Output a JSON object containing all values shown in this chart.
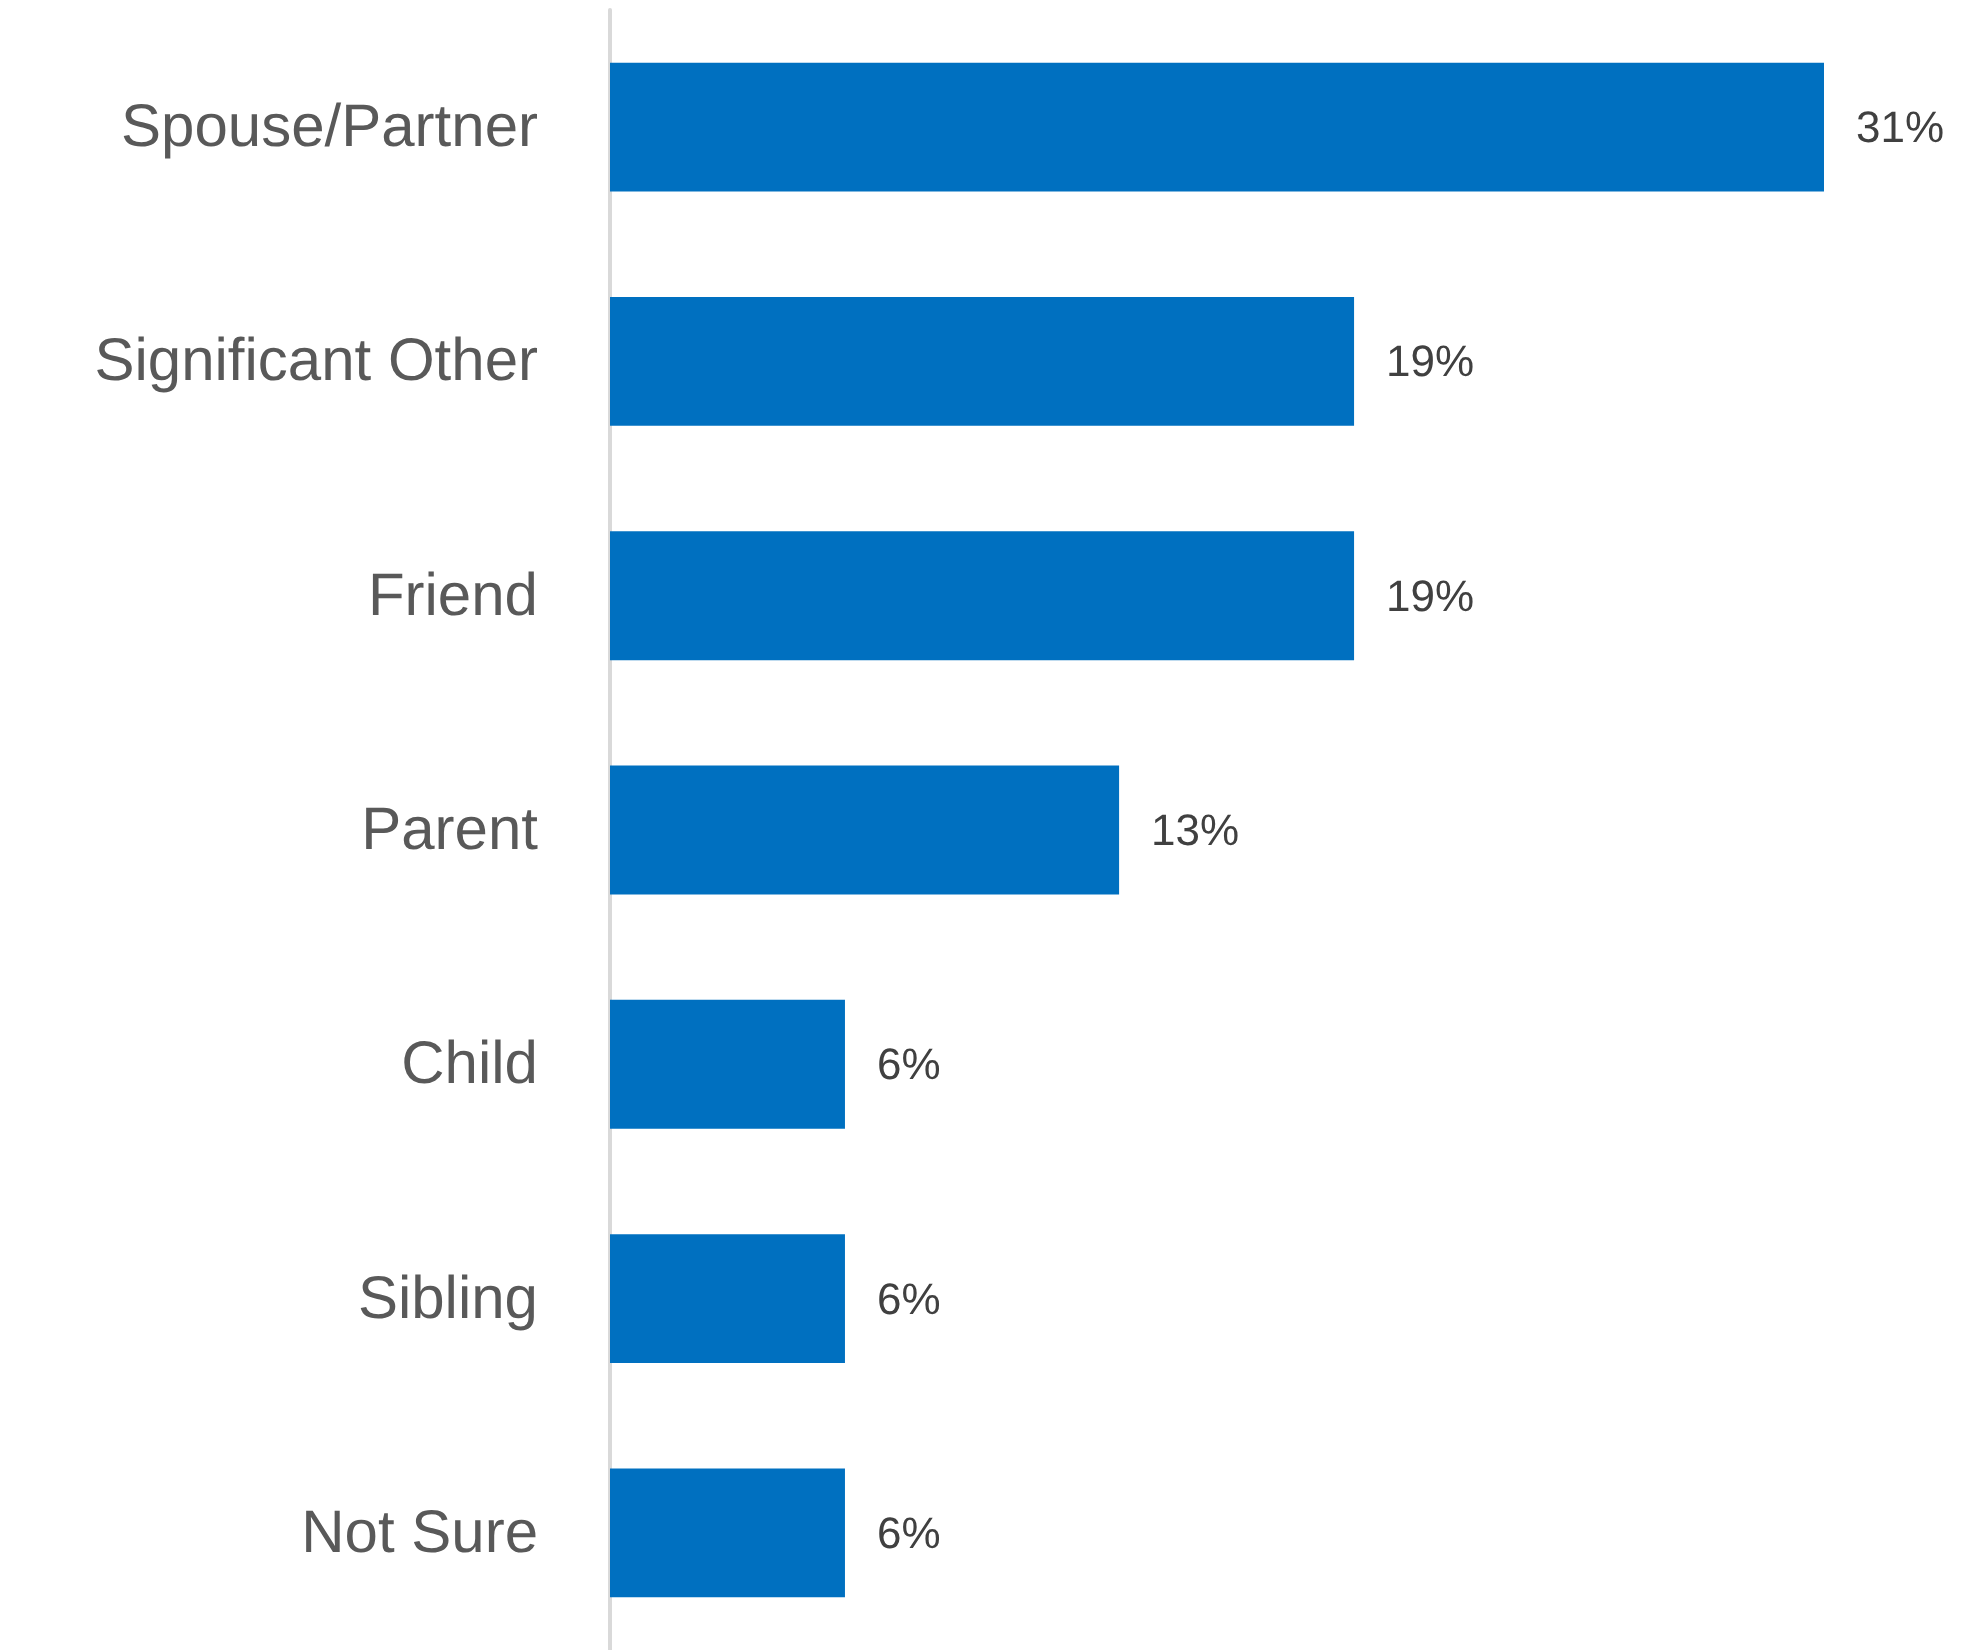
{
  "chart_data": {
    "type": "bar",
    "orientation": "horizontal",
    "categories": [
      "Spouse/Partner",
      "Significant Other",
      "Friend",
      "Parent",
      "Child",
      "Sibling",
      "Not Sure"
    ],
    "values": [
      31,
      19,
      19,
      13,
      6,
      6,
      6
    ],
    "value_labels": [
      "31%",
      "19%",
      "19%",
      "13%",
      "6%",
      "6%",
      "6%"
    ],
    "color": "#0070c0"
  }
}
